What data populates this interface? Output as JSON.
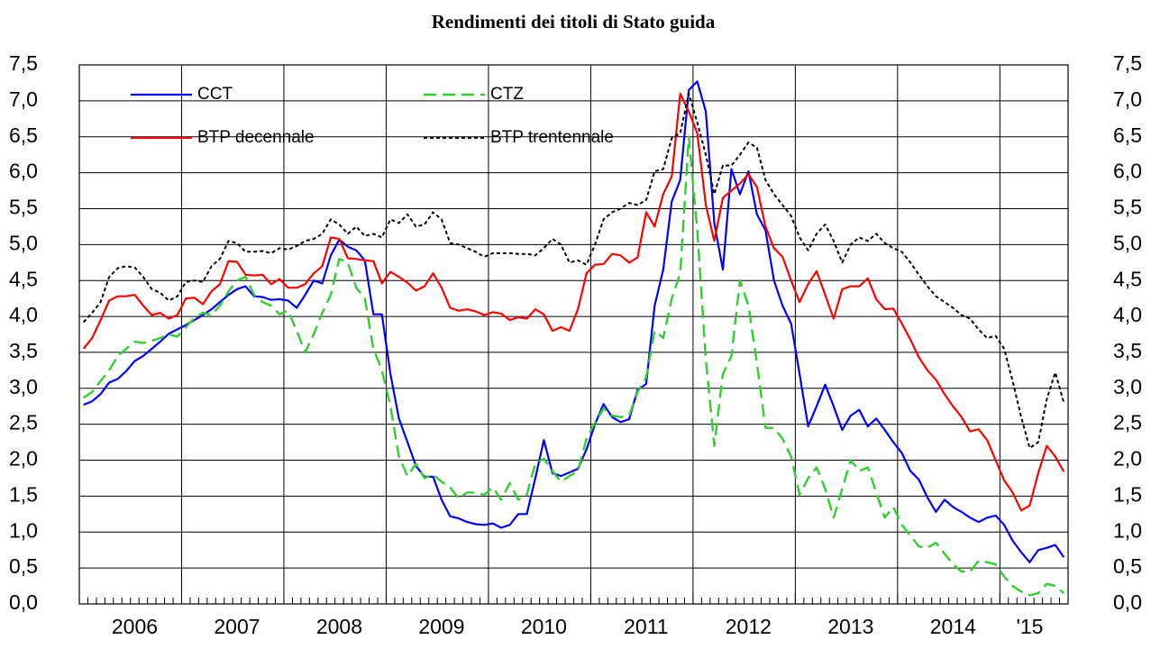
{
  "chart_data": {
    "type": "line",
    "title": "Rendimenti dei titoli di Stato guida",
    "categories": [
      null,
      null,
      null,
      null,
      null,
      null,
      "2006",
      null,
      null,
      null,
      null,
      null,
      null,
      null,
      null,
      null,
      null,
      null,
      "2007",
      null,
      null,
      null,
      null,
      null,
      null,
      null,
      null,
      null,
      null,
      null,
      "2008",
      null,
      null,
      null,
      null,
      null,
      null,
      null,
      null,
      null,
      null,
      null,
      "2009",
      null,
      null,
      null,
      null,
      null,
      null,
      null,
      null,
      null,
      null,
      null,
      "2010",
      null,
      null,
      null,
      null,
      null,
      null,
      null,
      null,
      null,
      null,
      null,
      "2011",
      null,
      null,
      null,
      null,
      null,
      null,
      null,
      null,
      null,
      null,
      null,
      "2012",
      null,
      null,
      null,
      null,
      null,
      null,
      null,
      null,
      null,
      null,
      null,
      "2013",
      null,
      null,
      null,
      null,
      null,
      null,
      null,
      null,
      null,
      null,
      null,
      "2014",
      null,
      null,
      null,
      null,
      null,
      null,
      null,
      null,
      "'15",
      null,
      null,
      null,
      null
    ],
    "ylim": [
      0,
      7.5
    ],
    "yticks": [
      {
        "value": 0,
        "label": "0,0"
      },
      {
        "value": 0.5,
        "label": "0,5"
      },
      {
        "value": 1,
        "label": "1,0"
      },
      {
        "value": 1.5,
        "label": "1,5"
      },
      {
        "value": 2,
        "label": "2,0"
      },
      {
        "value": 2.5,
        "label": "2,5"
      },
      {
        "value": 3,
        "label": "3,0"
      },
      {
        "value": 3.5,
        "label": "3,5"
      },
      {
        "value": 4,
        "label": "4,0"
      },
      {
        "value": 4.5,
        "label": "4,5"
      },
      {
        "value": 5,
        "label": "5,0"
      },
      {
        "value": 5.5,
        "label": "5,5"
      },
      {
        "value": 6,
        "label": "6,0"
      },
      {
        "value": 6.5,
        "label": "6,5"
      },
      {
        "value": 7,
        "label": "7,0"
      },
      {
        "value": 7.5,
        "label": "7,5"
      }
    ],
    "grid": true,
    "legend": "upper-left",
    "series": [
      {
        "name": "CCT",
        "color": "#0000ff",
        "line_style": "solid",
        "values": [
          2.77,
          2.82,
          2.92,
          3.08,
          3.13,
          3.24,
          3.38,
          3.45,
          3.55,
          3.65,
          3.76,
          3.82,
          3.88,
          3.95,
          4.02,
          4.1,
          4.2,
          4.3,
          4.38,
          4.42,
          4.28,
          4.27,
          4.23,
          4.24,
          4.22,
          4.12,
          4.3,
          4.5,
          4.46,
          4.85,
          5.07,
          4.97,
          4.92,
          4.78,
          4.03,
          4.03,
          3.2,
          2.58,
          2.25,
          1.92,
          1.77,
          1.77,
          1.45,
          1.22,
          1.19,
          1.14,
          1.11,
          1.1,
          1.12,
          1.06,
          1.1,
          1.25,
          1.25,
          1.75,
          2.28,
          1.82,
          1.78,
          1.83,
          1.88,
          2.15,
          2.5,
          2.78,
          2.6,
          2.53,
          2.57,
          2.98,
          3.06,
          4.15,
          4.65,
          5.6,
          5.9,
          7.15,
          7.27,
          6.85,
          5.3,
          4.65,
          6.05,
          5.7,
          6.02,
          5.42,
          5.2,
          4.5,
          4.15,
          3.9,
          3.2,
          2.47,
          2.75,
          3.05,
          2.75,
          2.42,
          2.62,
          2.7,
          2.47,
          2.58,
          2.42,
          2.25,
          2.1,
          1.85,
          1.73,
          1.48,
          1.28,
          1.45,
          1.35,
          1.28,
          1.2,
          1.14,
          1.2,
          1.23,
          1.1,
          0.88,
          0.72,
          0.58,
          0.75,
          0.78,
          0.82,
          0.65
        ]
      },
      {
        "name": "CTZ",
        "color": "#33cc33",
        "line_style": "dashed",
        "values": [
          2.87,
          2.95,
          3.1,
          3.25,
          3.45,
          3.55,
          3.65,
          3.63,
          3.66,
          3.7,
          3.75,
          3.72,
          3.85,
          3.98,
          4.05,
          4.02,
          4.15,
          4.35,
          4.5,
          4.55,
          4.3,
          4.2,
          4.15,
          4.03,
          4.08,
          3.8,
          3.5,
          3.75,
          4.05,
          4.3,
          4.8,
          4.75,
          4.4,
          4.25,
          3.55,
          3.25,
          2.75,
          2.05,
          1.78,
          1.95,
          1.75,
          1.8,
          1.7,
          1.62,
          1.47,
          1.55,
          1.55,
          1.52,
          1.62,
          1.45,
          1.68,
          1.45,
          1.52,
          1.95,
          2.02,
          1.85,
          1.7,
          1.78,
          1.85,
          2.3,
          2.52,
          2.72,
          2.62,
          2.6,
          2.62,
          2.95,
          3.15,
          3.8,
          3.7,
          4.25,
          4.6,
          6.5,
          5.2,
          3.4,
          2.2,
          3.2,
          3.45,
          4.5,
          4.15,
          3.35,
          2.45,
          2.45,
          2.3,
          2.05,
          1.52,
          1.75,
          1.9,
          1.6,
          1.2,
          1.6,
          2.0,
          1.85,
          1.9,
          1.55,
          1.2,
          1.35,
          1.1,
          0.95,
          0.8,
          0.78,
          0.85,
          0.7,
          0.55,
          0.45,
          0.45,
          0.6,
          0.58,
          0.55,
          0.38,
          0.25,
          0.17,
          0.12,
          0.15,
          0.28,
          0.25,
          0.15
        ]
      },
      {
        "name": "BTP decennale",
        "color": "#ff0000",
        "line_style": "solid",
        "values": [
          3.55,
          3.7,
          3.95,
          4.22,
          4.28,
          4.28,
          4.3,
          4.15,
          4.02,
          4.05,
          3.97,
          4.02,
          4.25,
          4.26,
          4.17,
          4.35,
          4.45,
          4.77,
          4.76,
          4.58,
          4.57,
          4.58,
          4.45,
          4.52,
          4.4,
          4.4,
          4.45,
          4.6,
          4.7,
          5.1,
          5.08,
          4.81,
          4.8,
          4.78,
          4.77,
          4.46,
          4.62,
          4.55,
          4.47,
          4.36,
          4.42,
          4.6,
          4.4,
          4.12,
          4.08,
          4.1,
          4.07,
          4.02,
          4.06,
          4.04,
          3.95,
          3.99,
          3.97,
          4.1,
          4.03,
          3.8,
          3.85,
          3.8,
          4.1,
          4.6,
          4.72,
          4.73,
          4.87,
          4.85,
          4.75,
          4.82,
          5.45,
          5.25,
          5.7,
          5.95,
          7.1,
          6.85,
          6.55,
          5.55,
          5.05,
          5.65,
          5.75,
          5.85,
          5.98,
          5.8,
          5.25,
          4.95,
          4.83,
          4.5,
          4.2,
          4.45,
          4.63,
          4.3,
          3.97,
          4.38,
          4.42,
          4.42,
          4.53,
          4.24,
          4.1,
          4.11,
          3.9,
          3.68,
          3.43,
          3.25,
          3.12,
          2.92,
          2.75,
          2.6,
          2.4,
          2.43,
          2.28,
          2.0,
          1.72,
          1.55,
          1.3,
          1.37,
          1.82,
          2.2,
          2.05,
          1.84
        ]
      },
      {
        "name": "BTP trentennale",
        "color": "#000000",
        "line_style": "dotted",
        "values": [
          3.92,
          4.05,
          4.2,
          4.55,
          4.67,
          4.7,
          4.68,
          4.55,
          4.38,
          4.33,
          4.22,
          4.28,
          4.48,
          4.5,
          4.48,
          4.7,
          4.8,
          5.05,
          5.02,
          4.9,
          4.9,
          4.91,
          4.88,
          4.95,
          4.93,
          4.98,
          5.05,
          5.08,
          5.15,
          5.35,
          5.28,
          5.15,
          5.25,
          5.12,
          5.15,
          5.1,
          5.35,
          5.3,
          5.42,
          5.25,
          5.28,
          5.45,
          5.35,
          5.02,
          5.0,
          4.95,
          4.9,
          4.83,
          4.88,
          4.88,
          4.88,
          4.87,
          4.87,
          4.85,
          4.95,
          5.08,
          5.0,
          4.75,
          4.78,
          4.72,
          5.0,
          5.35,
          5.45,
          5.5,
          5.58,
          5.55,
          5.62,
          6.02,
          6.05,
          6.48,
          6.55,
          7.1,
          6.7,
          6.25,
          5.7,
          6.1,
          6.1,
          6.25,
          6.42,
          6.35,
          5.9,
          5.7,
          5.55,
          5.4,
          5.1,
          4.92,
          5.15,
          5.28,
          5.05,
          4.75,
          5.0,
          5.1,
          5.05,
          5.15,
          5.02,
          4.95,
          4.9,
          4.75,
          4.58,
          4.42,
          4.28,
          4.2,
          4.12,
          4.02,
          3.97,
          3.82,
          3.7,
          3.73,
          3.55,
          3.1,
          2.6,
          2.17,
          2.25,
          2.85,
          3.22,
          2.8
        ]
      }
    ]
  }
}
